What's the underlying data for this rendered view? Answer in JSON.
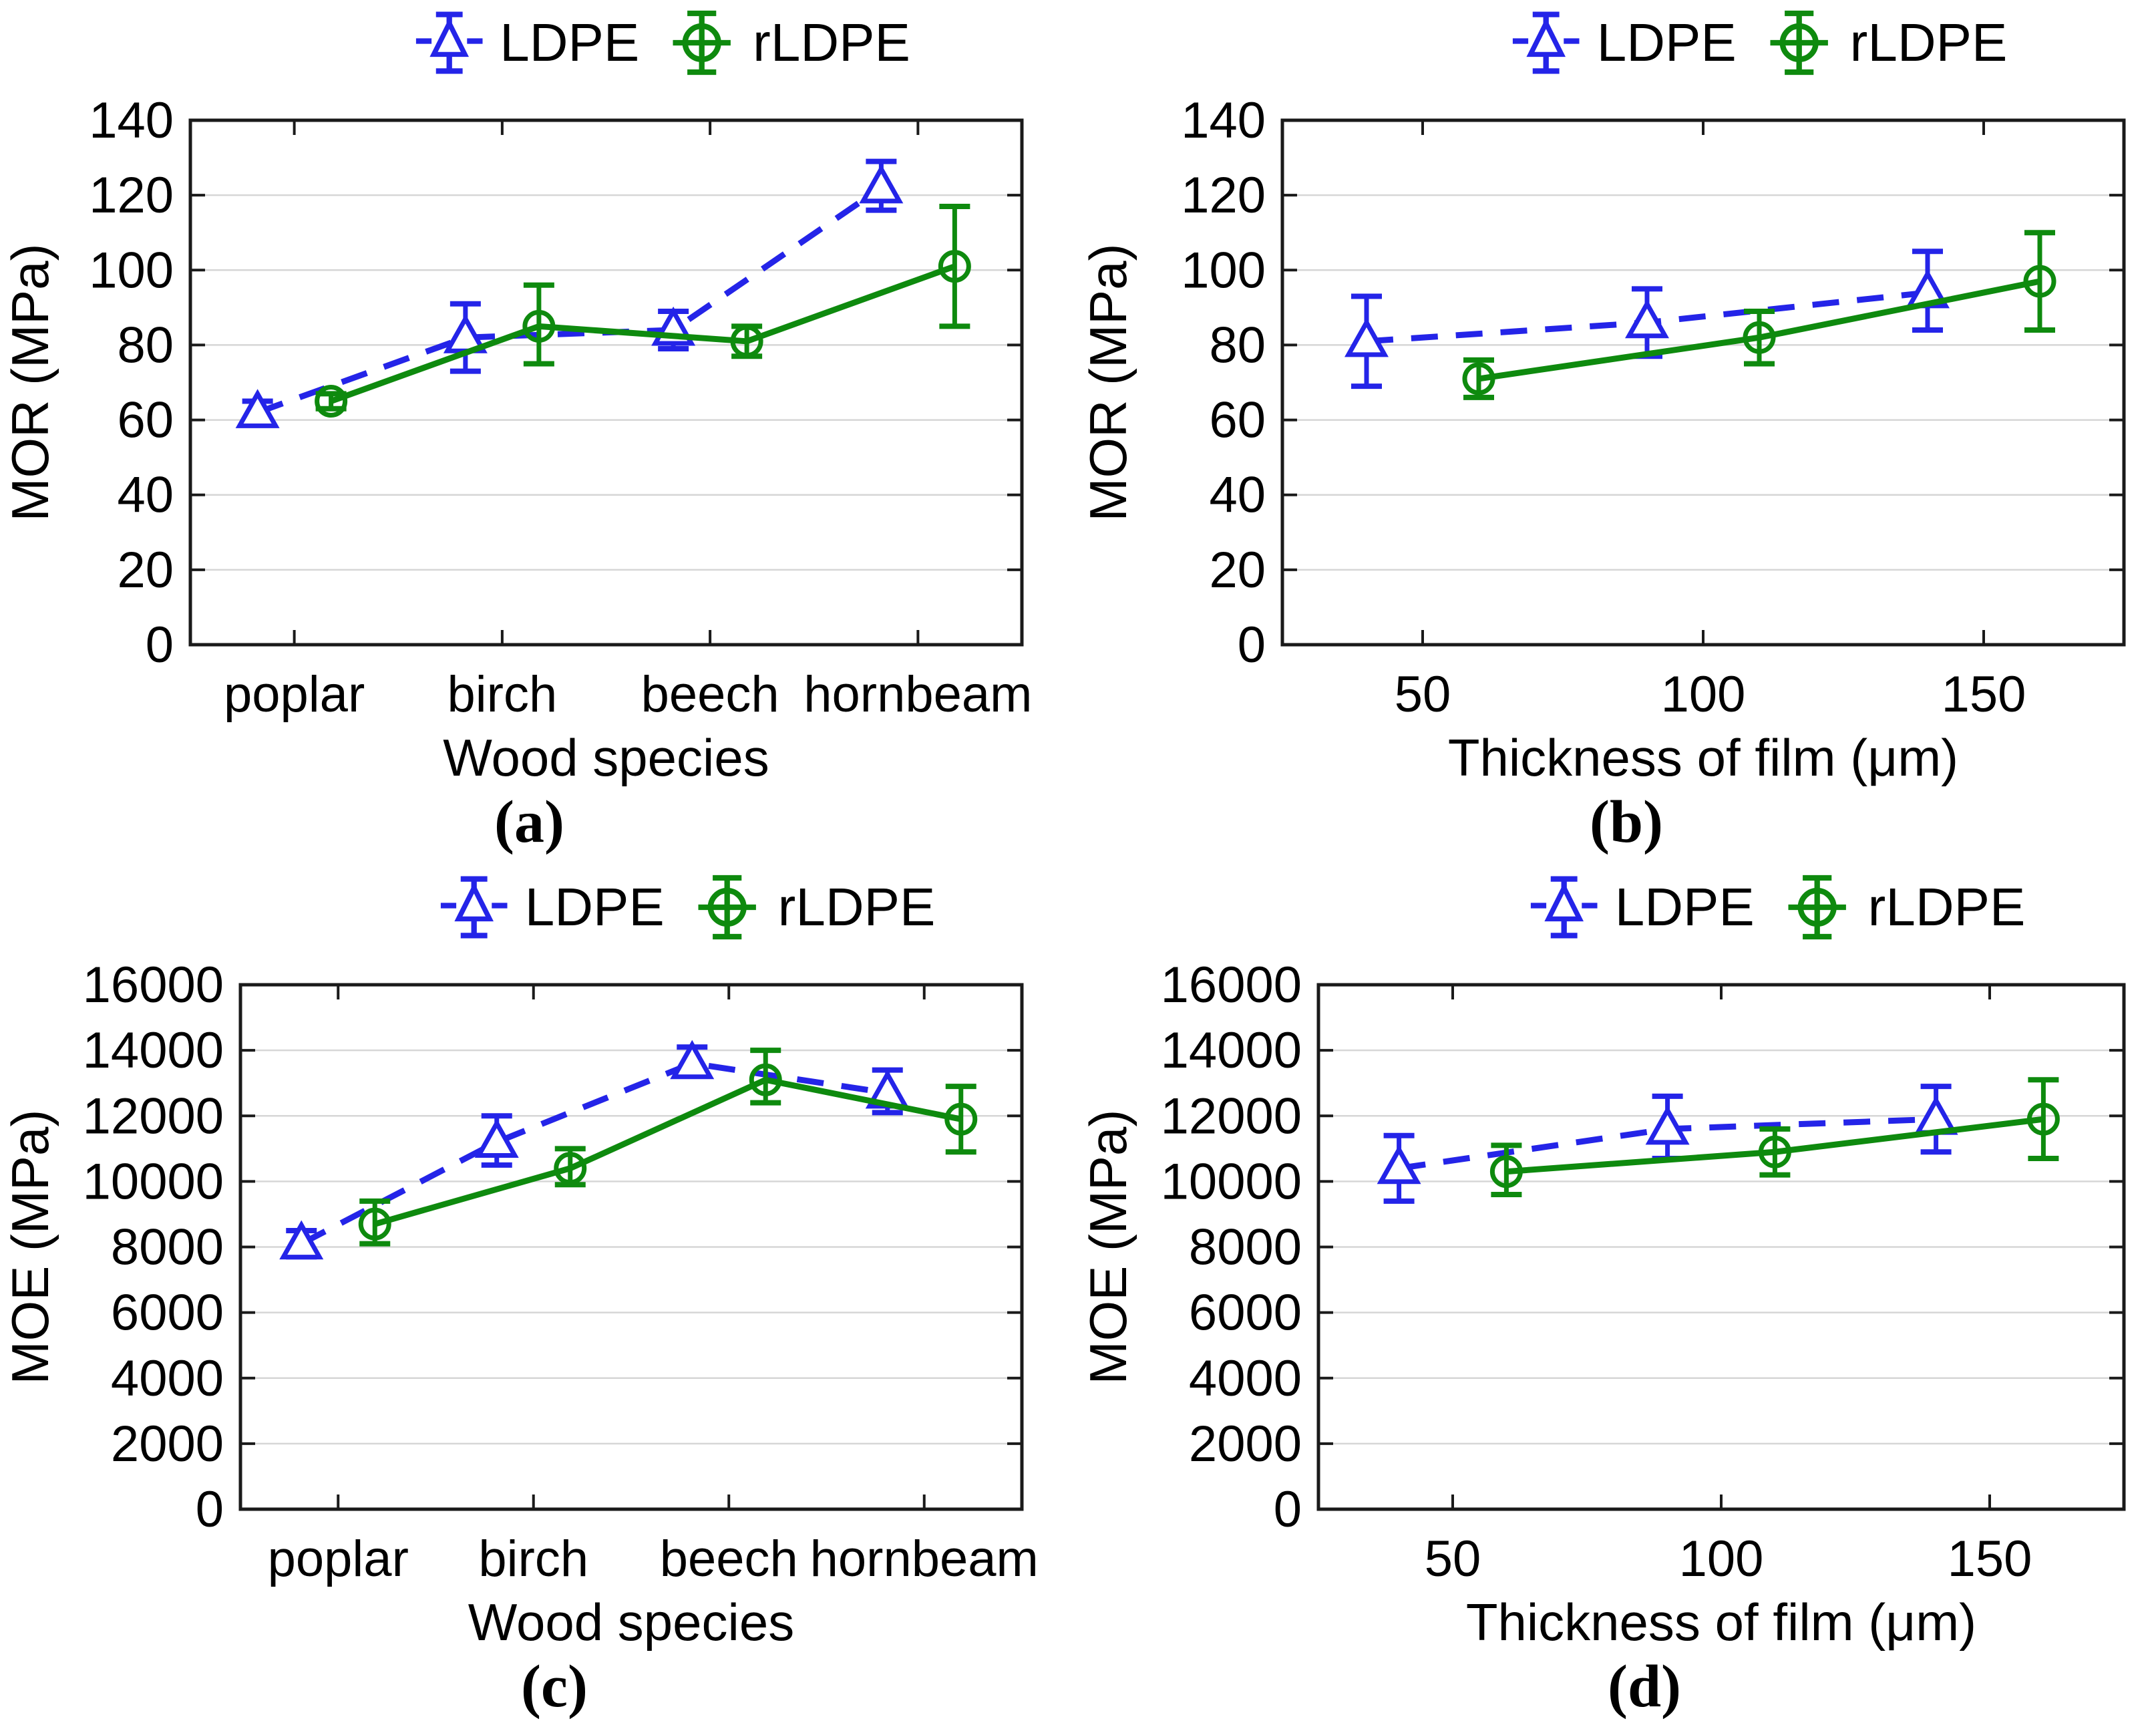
{
  "colors": {
    "ldpe": "#2424E8",
    "rldpe": "#0E8A0E",
    "grid": "#D6D6D6",
    "axis": "#1A1A1A",
    "text": "#000000"
  },
  "legend": {
    "items": [
      {
        "name": "LDPE"
      },
      {
        "name": "rLDPE"
      }
    ]
  },
  "chart_data": [
    {
      "id": "a",
      "sublabel": "(a)",
      "type": "line",
      "x_type": "category",
      "title": "",
      "xlabel": "Wood species",
      "ylabel": "MOR (MPa)",
      "categories": [
        "poplar",
        "birch",
        "beech",
        "hornbeam"
      ],
      "ylim": [
        0,
        140
      ],
      "ytick_step": 20,
      "grid": "horizontal",
      "legend_position": "top",
      "series": [
        {
          "name": "LDPE",
          "color_key": "ldpe",
          "line": "dashed",
          "marker": "triangle",
          "offset": -55,
          "values": [
            62,
            82,
            84,
            122
          ],
          "err_low": [
            60,
            73,
            79,
            116
          ],
          "err_high": [
            65,
            91,
            89,
            129
          ]
        },
        {
          "name": "rLDPE",
          "color_key": "rldpe",
          "line": "solid",
          "marker": "circle",
          "offset": 55,
          "values": [
            65,
            85,
            81,
            101
          ],
          "err_low": [
            63,
            75,
            77,
            85
          ],
          "err_high": [
            67,
            96,
            85,
            117
          ]
        }
      ]
    },
    {
      "id": "b",
      "sublabel": "(b)",
      "type": "line",
      "x_type": "numeric",
      "title": "",
      "xlabel": "Thickness of film (μm)",
      "ylabel": "MOR (MPa)",
      "xlim": [
        25,
        175
      ],
      "xticks": [
        50,
        100,
        150
      ],
      "ylim": [
        0,
        140
      ],
      "ytick_step": 20,
      "grid": "horizontal",
      "legend_position": "top",
      "series": [
        {
          "name": "LDPE",
          "color_key": "ldpe",
          "line": "dashed",
          "marker": "triangle",
          "x": [
            40,
            90,
            140
          ],
          "values": [
            81,
            86,
            94
          ],
          "err_low": [
            69,
            77,
            84
          ],
          "err_high": [
            93,
            95,
            105
          ]
        },
        {
          "name": "rLDPE",
          "color_key": "rldpe",
          "line": "solid",
          "marker": "circle",
          "x": [
            60,
            110,
            160
          ],
          "values": [
            71,
            82,
            97
          ],
          "err_low": [
            66,
            75,
            84
          ],
          "err_high": [
            76,
            89,
            110
          ]
        }
      ]
    },
    {
      "id": "c",
      "sublabel": "(c)",
      "type": "line",
      "x_type": "category",
      "title": "",
      "xlabel": "Wood species",
      "ylabel": "MOE (MPa)",
      "categories": [
        "poplar",
        "birch",
        "beech",
        "hornbeam"
      ],
      "ylim": [
        0,
        16000
      ],
      "ytick_step": 2000,
      "grid": "horizontal",
      "legend_position": "top",
      "series": [
        {
          "name": "LDPE",
          "color_key": "ldpe",
          "line": "dashed",
          "marker": "triangle",
          "offset": -55,
          "values": [
            8100,
            11200,
            13600,
            12700
          ],
          "err_low": [
            7700,
            10500,
            13300,
            12100
          ],
          "err_high": [
            8500,
            12000,
            14100,
            13400
          ]
        },
        {
          "name": "rLDPE",
          "color_key": "rldpe",
          "line": "solid",
          "marker": "circle",
          "offset": 55,
          "values": [
            8700,
            10400,
            13100,
            11900
          ],
          "err_low": [
            8100,
            9900,
            12400,
            10900
          ],
          "err_high": [
            9400,
            11000,
            14000,
            12900
          ]
        }
      ]
    },
    {
      "id": "d",
      "sublabel": "(d)",
      "type": "line",
      "x_type": "numeric",
      "title": "",
      "xlabel": "Thickness of film (μm)",
      "ylabel": "MOE (MPa)",
      "xlim": [
        25,
        175
      ],
      "xticks": [
        50,
        100,
        150
      ],
      "ylim": [
        0,
        16000
      ],
      "ytick_step": 2000,
      "grid": "horizontal",
      "legend_position": "top",
      "series": [
        {
          "name": "LDPE",
          "color_key": "ldpe",
          "line": "dashed",
          "marker": "triangle",
          "x": [
            40,
            90,
            140
          ],
          "values": [
            10400,
            11600,
            11900
          ],
          "err_low": [
            9400,
            10700,
            10900
          ],
          "err_high": [
            11400,
            12600,
            12900
          ]
        },
        {
          "name": "rLDPE",
          "color_key": "rldpe",
          "line": "solid",
          "marker": "circle",
          "x": [
            60,
            110,
            160
          ],
          "values": [
            10300,
            10900,
            11900
          ],
          "err_low": [
            9600,
            10200,
            10700
          ],
          "err_high": [
            11100,
            11600,
            13100
          ]
        }
      ]
    }
  ]
}
